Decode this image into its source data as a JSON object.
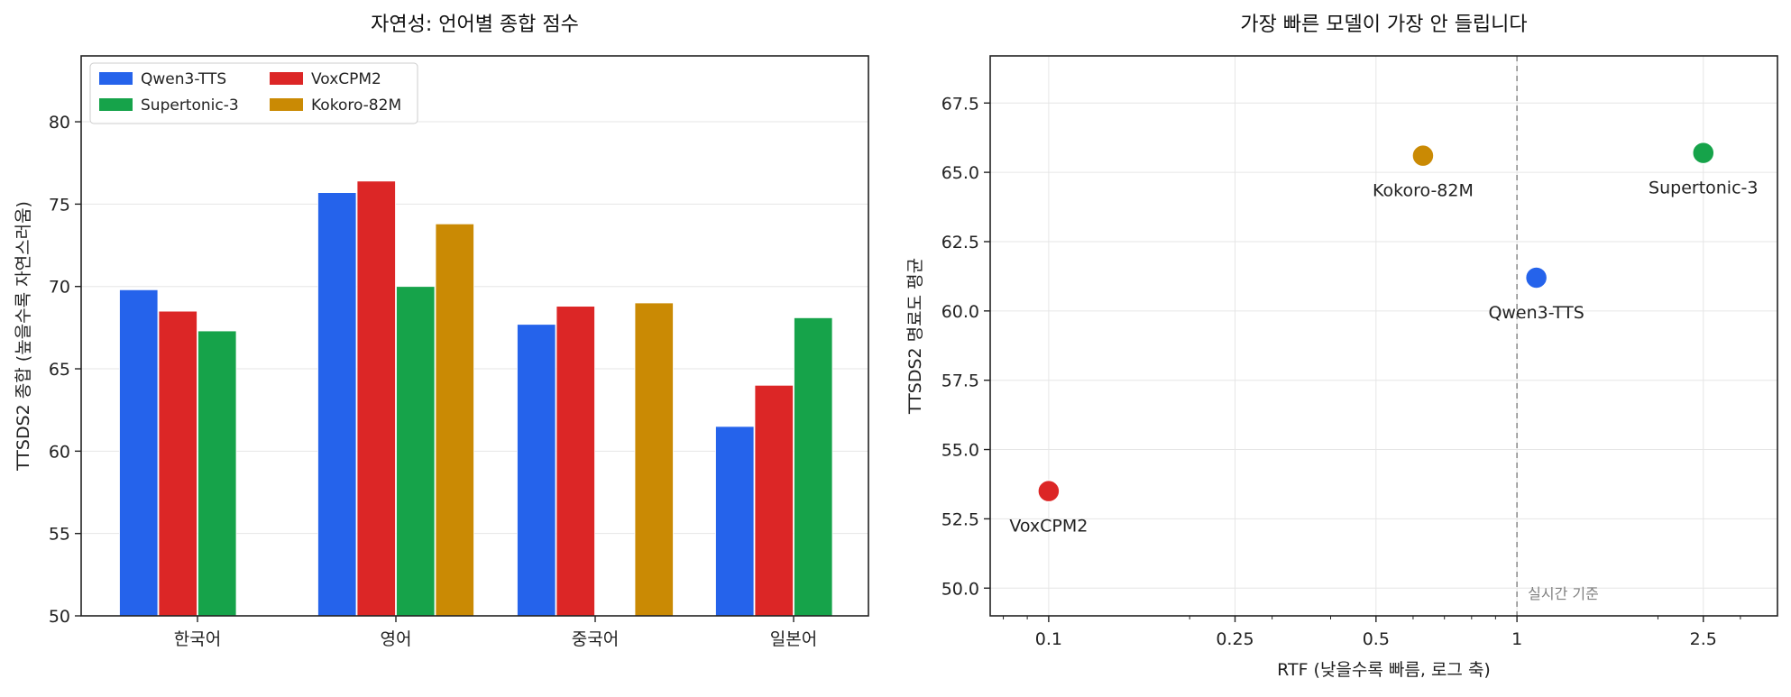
{
  "chart_data": [
    {
      "type": "bar",
      "title": "자연성: 언어별 종합 점수",
      "xlabel": "",
      "ylabel": "TTSDS2 종합 (높을수록 자연스러움)",
      "ylim": [
        50,
        84
      ],
      "yticks": [
        "50",
        "55",
        "60",
        "65",
        "70",
        "75",
        "80"
      ],
      "categories": [
        "한국어",
        "영어",
        "중국어",
        "일본어"
      ],
      "series": [
        {
          "name": "Qwen3-TTS",
          "color": "#2563eb",
          "values": [
            69.8,
            75.7,
            67.7,
            61.5
          ]
        },
        {
          "name": "VoxCPM2",
          "color": "#dc2626",
          "values": [
            68.5,
            76.4,
            68.8,
            64.0
          ]
        },
        {
          "name": "Supertonic-3",
          "color": "#16a34a",
          "values": [
            67.3,
            70.0,
            null,
            68.1
          ]
        },
        {
          "name": "Kokoro-82M",
          "color": "#ca8a04",
          "values": [
            null,
            73.8,
            69.0,
            null
          ]
        }
      ],
      "legend": "top-left",
      "grid": true
    },
    {
      "type": "scatter",
      "title": "가장 빠른 모델이 가장 안 들립니다",
      "xlabel": "RTF (낮을수록 빠름, 로그 축)",
      "ylabel": "TTSDS2 명료도 평균",
      "xscale": "log",
      "xlim": [
        0.075,
        3.6
      ],
      "ylim": [
        49,
        69.2
      ],
      "xticks": [
        "0.1",
        "0.25",
        "0.5",
        "1",
        "2.5"
      ],
      "yticks": [
        "50.0",
        "52.5",
        "55.0",
        "57.5",
        "60.0",
        "62.5",
        "65.0",
        "67.5"
      ],
      "points": [
        {
          "label": "VoxCPM2",
          "x": 0.1,
          "y": 53.5,
          "color": "#dc2626"
        },
        {
          "label": "Kokoro-82M",
          "x": 0.63,
          "y": 65.6,
          "color": "#ca8a04"
        },
        {
          "label": "Qwen3-TTS",
          "x": 1.1,
          "y": 61.2,
          "color": "#2563eb"
        },
        {
          "label": "Supertonic-3",
          "x": 2.5,
          "y": 65.7,
          "color": "#16a34a"
        }
      ],
      "reference_line": {
        "x": 1,
        "label": "실시간 기준"
      },
      "grid": true
    }
  ]
}
